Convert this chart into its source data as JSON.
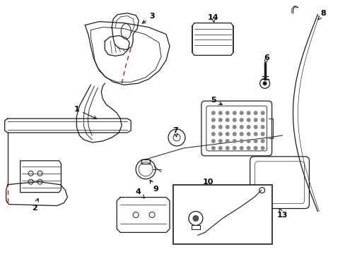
{
  "bg_color": "#ffffff",
  "lc": "#1a1a1a",
  "rc": "#cc0000",
  "fs": 8,
  "figw": 4.89,
  "figh": 3.6,
  "dpi": 100
}
